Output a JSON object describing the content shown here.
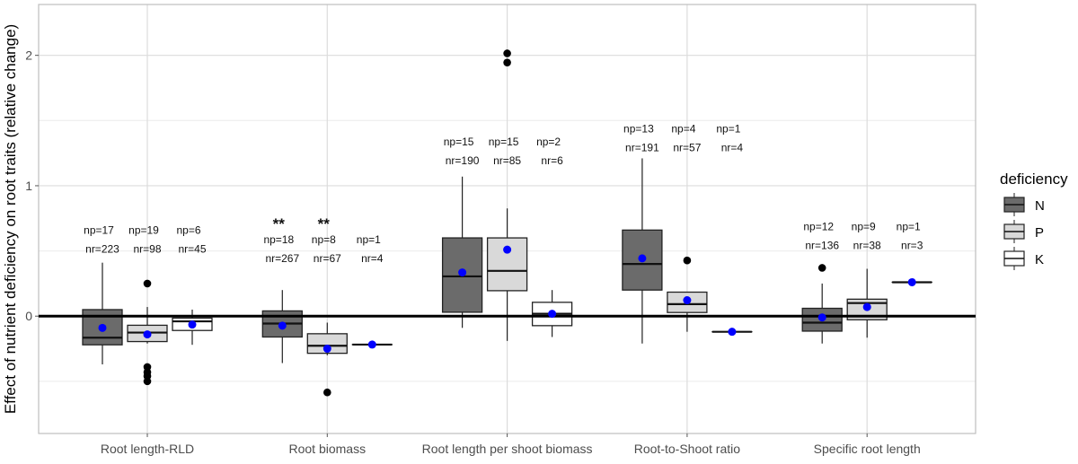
{
  "chart_data": {
    "type": "box",
    "title": "",
    "xlabel": "",
    "ylabel": "Effect of nutrient deficiency on root traits (relative change)",
    "ylim": [
      -0.9,
      2.39
    ],
    "yticks": [
      "0",
      "1",
      "2"
    ],
    "grid": true,
    "reference_line": 0,
    "legend": {
      "title": "deficiency",
      "position": "right",
      "entries": [
        "N",
        "P",
        "K"
      ]
    },
    "series_colors": {
      "N": "#6b6b6b",
      "P": "#d9d9d9",
      "K": "#ffffff"
    },
    "mean_color": "#0000ff",
    "categories": [
      "Root length-RLD",
      "Root biomass",
      "Root length per shoot biomass",
      "Root-to-Shoot ratio",
      "Specific root length"
    ],
    "groups": [
      {
        "category": "Root length-RLD",
        "boxes": [
          {
            "series": "N",
            "q1": -0.22,
            "median": -0.165,
            "q3": 0.05,
            "whisker_low": -0.37,
            "whisker_high": 0.41,
            "mean": -0.09,
            "outliers": [],
            "np": "np=17",
            "nr": "nr=223",
            "sig": ""
          },
          {
            "series": "P",
            "q1": -0.195,
            "median": -0.126,
            "q3": -0.07,
            "whisker_low": -0.21,
            "whisker_high": 0.07,
            "mean": -0.14,
            "outliers": [
              0.25,
              -0.39,
              -0.43,
              -0.46,
              -0.5
            ],
            "np": "np=19",
            "nr": "nr=98",
            "sig": ""
          },
          {
            "series": "K",
            "q1": -0.11,
            "median": -0.04,
            "q3": -0.015,
            "whisker_low": -0.22,
            "whisker_high": 0.05,
            "mean": -0.065,
            "outliers": [],
            "np": "np=6",
            "nr": "nr=45",
            "sig": ""
          }
        ]
      },
      {
        "category": "Root biomass",
        "boxes": [
          {
            "series": "N",
            "q1": -0.16,
            "median": -0.057,
            "q3": 0.04,
            "whisker_low": -0.36,
            "whisker_high": 0.2,
            "mean": -0.073,
            "outliers": [],
            "np": "np=18",
            "nr": "nr=267",
            "sig": "**"
          },
          {
            "series": "P",
            "q1": -0.285,
            "median": -0.227,
            "q3": -0.135,
            "whisker_low": -0.3,
            "whisker_high": -0.05,
            "mean": -0.25,
            "outliers": [
              -0.585
            ],
            "np": "np=8",
            "nr": "nr=67",
            "sig": "**"
          },
          {
            "series": "K",
            "q1": -0.218,
            "median": -0.218,
            "q3": -0.218,
            "whisker_low": -0.218,
            "whisker_high": -0.218,
            "mean": -0.218,
            "outliers": [],
            "np": "np=1",
            "nr": "nr=4",
            "sig": ""
          }
        ]
      },
      {
        "category": "Root length per shoot biomass",
        "boxes": [
          {
            "series": "N",
            "q1": 0.03,
            "median": 0.305,
            "q3": 0.6,
            "whisker_low": -0.09,
            "whisker_high": 1.07,
            "mean": 0.335,
            "outliers": [],
            "np": "np=15",
            "nr": "nr=190",
            "sig": ""
          },
          {
            "series": "P",
            "q1": 0.195,
            "median": 0.347,
            "q3": 0.6,
            "whisker_low": -0.19,
            "whisker_high": 0.826,
            "mean": 0.51,
            "outliers": [
              2.015,
              1.945
            ],
            "np": "np=15",
            "nr": "nr=85",
            "sig": ""
          },
          {
            "series": "K",
            "q1": -0.073,
            "median": 0.018,
            "q3": 0.106,
            "whisker_low": -0.16,
            "whisker_high": 0.2,
            "mean": 0.018,
            "outliers": [],
            "np": "np=2",
            "nr": "nr=6",
            "sig": ""
          }
        ]
      },
      {
        "category": "Root-to-Shoot ratio",
        "boxes": [
          {
            "series": "N",
            "q1": 0.2,
            "median": 0.4,
            "q3": 0.66,
            "whisker_low": -0.21,
            "whisker_high": 1.21,
            "mean": 0.443,
            "outliers": [],
            "np": "np=13",
            "nr": "nr=191",
            "sig": ""
          },
          {
            "series": "P",
            "q1": 0.028,
            "median": 0.092,
            "q3": 0.184,
            "whisker_low": -0.12,
            "whisker_high": 0.184,
            "mean": 0.122,
            "outliers": [
              0.427
            ],
            "np": "np=4",
            "nr": "nr=57",
            "sig": ""
          },
          {
            "series": "K",
            "q1": -0.12,
            "median": -0.12,
            "q3": -0.12,
            "whisker_low": -0.12,
            "whisker_high": -0.12,
            "mean": -0.12,
            "outliers": [],
            "np": "np=1",
            "nr": "nr=4",
            "sig": ""
          }
        ]
      },
      {
        "category": "Specific root length",
        "boxes": [
          {
            "series": "N",
            "q1": -0.115,
            "median": -0.05,
            "q3": 0.06,
            "whisker_low": -0.21,
            "whisker_high": 0.25,
            "mean": -0.01,
            "outliers": [
              0.37
            ],
            "np": "np=12",
            "nr": "nr=136",
            "sig": ""
          },
          {
            "series": "P",
            "q1": -0.028,
            "median": 0.1,
            "q3": 0.13,
            "whisker_low": -0.165,
            "whisker_high": 0.363,
            "mean": 0.07,
            "outliers": [],
            "np": "np=9",
            "nr": "nr=38",
            "sig": ""
          },
          {
            "series": "K",
            "q1": 0.26,
            "median": 0.26,
            "q3": 0.26,
            "whisker_low": 0.26,
            "whisker_high": 0.26,
            "mean": 0.26,
            "outliers": [],
            "np": "np=1",
            "nr": "nr=3",
            "sig": ""
          }
        ]
      }
    ]
  }
}
